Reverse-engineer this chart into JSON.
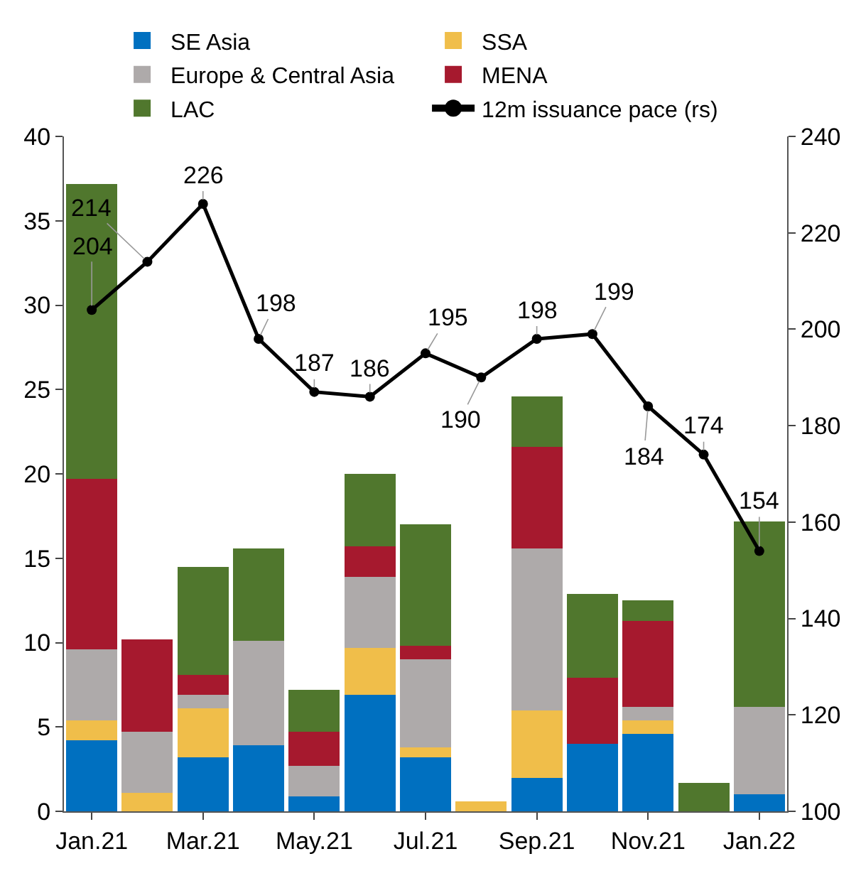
{
  "chart_data": {
    "type": "bar",
    "stacked": true,
    "categories": [
      "Jan.21",
      null,
      "Mar.21",
      null,
      "May.21",
      null,
      "Jul.21",
      null,
      "Sep.21",
      null,
      "Nov.21",
      null,
      "Jan.22"
    ],
    "series": [
      {
        "name": "SE Asia",
        "color": "#0070c0",
        "values": [
          4.2,
          0,
          3.2,
          3.9,
          0.9,
          6.9,
          3.2,
          0,
          2.0,
          4.0,
          4.6,
          0,
          1.0
        ]
      },
      {
        "name": "SSA",
        "color": "#f0be4a",
        "values": [
          1.2,
          1.1,
          2.9,
          0,
          0,
          2.8,
          0.6,
          0.6,
          4.0,
          0,
          0.8,
          0,
          0
        ]
      },
      {
        "name": "Europe & Central Asia",
        "color": "#aeaaaa",
        "values": [
          4.2,
          3.6,
          0.8,
          6.2,
          1.8,
          4.2,
          5.2,
          0,
          9.6,
          0,
          0.8,
          0,
          5.2
        ]
      },
      {
        "name": "MENA",
        "color": "#a6192e",
        "values": [
          10.1,
          5.5,
          1.2,
          0,
          2.0,
          1.8,
          0.8,
          0,
          6.0,
          3.9,
          5.1,
          0,
          0
        ]
      },
      {
        "name": "LAC",
        "color": "#50772d",
        "values": [
          17.5,
          0,
          6.4,
          5.5,
          2.5,
          4.3,
          7.2,
          0,
          3.0,
          5.0,
          1.2,
          1.7,
          11.0
        ]
      },
      {
        "name": "12m issuance pace (rs)",
        "type": "line",
        "axis": "y2",
        "color": "#000000",
        "marker": "circle",
        "data_labels": true,
        "values": [
          204,
          214,
          226,
          198,
          187,
          186,
          195,
          190,
          198,
          199,
          184,
          174,
          154
        ]
      }
    ],
    "ylim": [
      0,
      40
    ],
    "yticks": [
      0,
      5,
      10,
      15,
      20,
      25,
      30,
      35,
      40
    ],
    "y2lim": [
      100,
      240
    ],
    "y2ticks": [
      100,
      120,
      140,
      160,
      180,
      200,
      220,
      240
    ],
    "legend": "top"
  }
}
